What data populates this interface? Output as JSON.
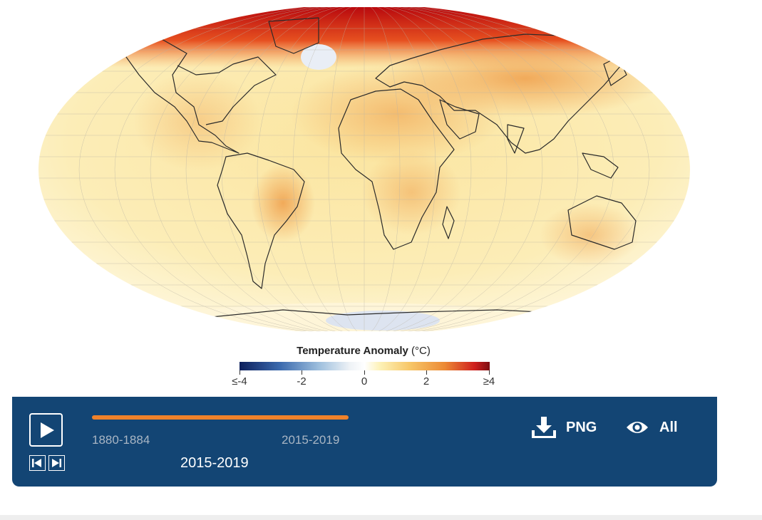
{
  "legend": {
    "title": "Temperature Anomaly",
    "unit": "(°C)",
    "ticks": [
      {
        "value": -4,
        "label": "≤-4"
      },
      {
        "value": -2,
        "label": "-2"
      },
      {
        "value": 0,
        "label": "0"
      },
      {
        "value": 2,
        "label": "2"
      },
      {
        "value": 4,
        "label": "≥4"
      }
    ],
    "colors": [
      "#0d1f5c",
      "#3a69ad",
      "#9fc0de",
      "#ffffff",
      "#fdf2b8",
      "#f7c768",
      "#ec8a35",
      "#cf1f1d",
      "#7d0d11"
    ]
  },
  "controls": {
    "range_start": "1880-1884",
    "range_end": "2015-2019",
    "current_period": "2015-2019",
    "slider_progress": 1.0,
    "play_icon": "play-icon",
    "step_back_icon": "step-back-icon",
    "step_forward_icon": "step-forward-icon",
    "download_label": "PNG",
    "download_icon": "download-icon",
    "view_label": "All",
    "view_icon": "eye-icon",
    "panel_color": "#134574",
    "accent_color": "#f0822a"
  }
}
